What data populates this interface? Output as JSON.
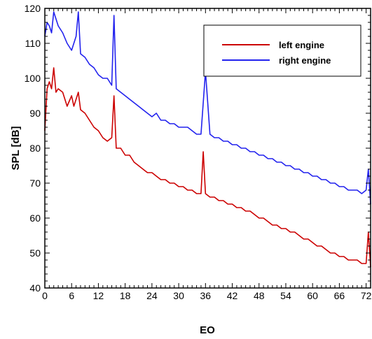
{
  "chart_data": {
    "type": "line",
    "title": "",
    "xlabel": "EO",
    "ylabel": "SPL [dB]",
    "xlim": [
      0,
      73
    ],
    "ylim": [
      40,
      120
    ],
    "xticks": [
      0,
      6,
      12,
      18,
      24,
      30,
      36,
      42,
      48,
      54,
      60,
      66,
      72
    ],
    "yticks": [
      40,
      50,
      60,
      70,
      80,
      90,
      100,
      110,
      120
    ],
    "grid": false,
    "legend_position": "top-right",
    "series": [
      {
        "name": "left engine",
        "color": "#cc0000",
        "x": [
          0,
          0.5,
          1,
          1.5,
          2,
          2.5,
          3,
          4,
          5,
          6,
          6.5,
          7,
          7.5,
          8,
          9,
          10,
          11,
          12,
          13,
          14,
          15,
          15.5,
          16,
          17,
          18,
          19,
          20,
          21,
          22,
          23,
          24,
          25,
          26,
          27,
          28,
          29,
          30,
          31,
          32,
          33,
          34,
          35,
          35.5,
          36,
          37,
          38,
          39,
          40,
          41,
          42,
          43,
          44,
          45,
          46,
          47,
          48,
          49,
          50,
          51,
          52,
          53,
          54,
          55,
          56,
          57,
          58,
          59,
          60,
          61,
          62,
          63,
          64,
          65,
          66,
          67,
          68,
          69,
          70,
          71,
          72,
          72.5,
          73
        ],
        "values": [
          85,
          97,
          99,
          97,
          103,
          96,
          97,
          96,
          92,
          95,
          92,
          94,
          96,
          91,
          90,
          88,
          86,
          85,
          83,
          82,
          83,
          95,
          80,
          80,
          78,
          78,
          76,
          75,
          74,
          73,
          73,
          72,
          71,
          71,
          70,
          70,
          69,
          69,
          68,
          68,
          67,
          67,
          79,
          67,
          66,
          66,
          65,
          65,
          64,
          64,
          63,
          63,
          62,
          62,
          61,
          60,
          60,
          59,
          58,
          58,
          57,
          57,
          56,
          56,
          55,
          54,
          54,
          53,
          52,
          52,
          51,
          50,
          50,
          49,
          49,
          48,
          48,
          48,
          47,
          47,
          56,
          46
        ]
      },
      {
        "name": "right engine",
        "color": "#2222ee",
        "x": [
          0,
          0.5,
          1,
          1.5,
          2,
          3,
          4,
          5,
          6,
          7,
          7.5,
          8,
          9,
          10,
          11,
          12,
          13,
          14,
          15,
          15.5,
          16,
          17,
          18,
          19,
          20,
          21,
          22,
          23,
          24,
          25,
          26,
          27,
          28,
          29,
          30,
          31,
          32,
          33,
          34,
          35,
          36,
          37,
          38,
          39,
          40,
          41,
          42,
          43,
          44,
          45,
          46,
          47,
          48,
          49,
          50,
          51,
          52,
          53,
          54,
          55,
          56,
          57,
          58,
          59,
          60,
          61,
          62,
          63,
          64,
          65,
          66,
          67,
          68,
          69,
          70,
          71,
          72,
          72.5,
          73
        ],
        "values": [
          112,
          116,
          115,
          113,
          119,
          115,
          113,
          110,
          108,
          112,
          119,
          107,
          106,
          104,
          103,
          101,
          100,
          100,
          98,
          118,
          97,
          96,
          95,
          94,
          93,
          92,
          91,
          90,
          89,
          90,
          88,
          88,
          87,
          87,
          86,
          86,
          86,
          85,
          84,
          84,
          102,
          84,
          83,
          83,
          82,
          82,
          81,
          81,
          80,
          80,
          79,
          79,
          78,
          78,
          77,
          77,
          76,
          76,
          75,
          75,
          74,
          74,
          73,
          73,
          72,
          72,
          71,
          71,
          70,
          70,
          69,
          69,
          68,
          68,
          68,
          67,
          68,
          74,
          64
        ]
      }
    ]
  }
}
